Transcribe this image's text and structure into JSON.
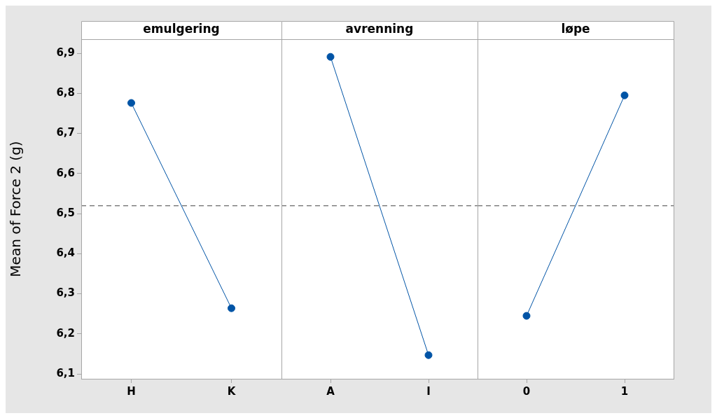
{
  "chart_data": [
    {
      "type": "line",
      "title": "emulgering",
      "ylabel": "Mean of Force 2 (g)",
      "categories": [
        "H",
        "K"
      ],
      "series": [
        {
          "color": "#0054a6",
          "values": [
            6.776,
            6.264
          ]
        }
      ],
      "ylim": [
        6.088,
        6.935
      ],
      "yticks": [
        {
          "value": 6.1,
          "label": "6,1"
        },
        {
          "value": 6.2,
          "label": "6,2"
        },
        {
          "value": 6.3,
          "label": "6,3"
        },
        {
          "value": 6.4,
          "label": "6,4"
        },
        {
          "value": 6.5,
          "label": "6,5"
        },
        {
          "value": 6.6,
          "label": "6,6"
        },
        {
          "value": 6.7,
          "label": "6,7"
        },
        {
          "value": 6.8,
          "label": "6,8"
        },
        {
          "value": 6.9,
          "label": "6,9"
        }
      ],
      "ref_lines": [
        {
          "axis": "y",
          "value": 6.52,
          "color": "#808080",
          "line_style": "dashed"
        }
      ],
      "marker": "circle",
      "grid": false,
      "legend": false
    },
    {
      "type": "line",
      "title": "avrenning",
      "categories": [
        "A",
        "I"
      ],
      "series": [
        {
          "color": "#0054a6",
          "values": [
            6.891,
            6.147
          ]
        }
      ],
      "ylim": [
        6.088,
        6.935
      ],
      "ref_lines": [
        {
          "axis": "y",
          "value": 6.52,
          "color": "#808080",
          "line_style": "dashed"
        }
      ],
      "marker": "circle",
      "grid": false,
      "legend": false,
      "tick_labels": "x"
    },
    {
      "type": "line",
      "title": "løpe",
      "categories": [
        "0",
        "1"
      ],
      "series": [
        {
          "color": "#0054a6",
          "values": [
            6.245,
            6.795
          ]
        }
      ],
      "ylim": [
        6.088,
        6.935
      ],
      "ref_lines": [
        {
          "axis": "y",
          "value": 6.52,
          "color": "#808080",
          "line_style": "dashed"
        }
      ],
      "marker": "circle",
      "grid": false,
      "legend": false,
      "tick_labels": "x"
    }
  ]
}
